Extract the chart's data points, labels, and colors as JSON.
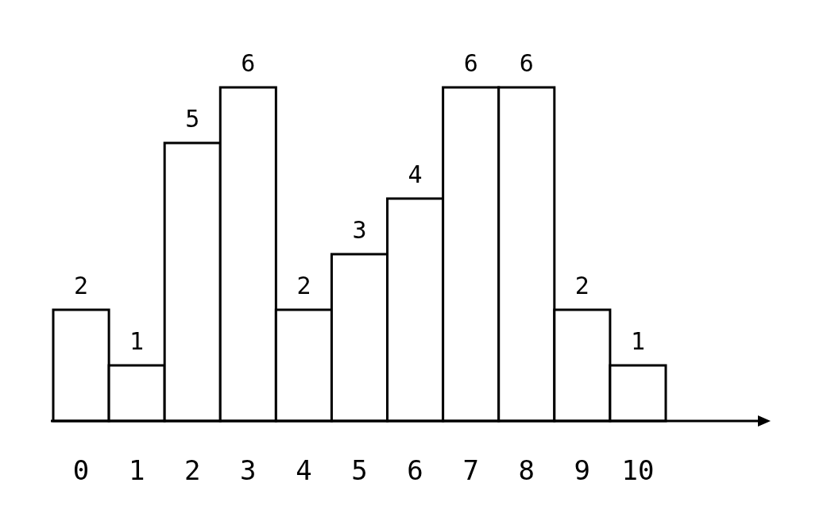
{
  "chart_data": {
    "type": "bar",
    "categories": [
      "0",
      "1",
      "2",
      "3",
      "4",
      "5",
      "6",
      "7",
      "8",
      "9",
      "10"
    ],
    "values": [
      2,
      1,
      5,
      6,
      2,
      3,
      4,
      6,
      6,
      2,
      1
    ],
    "color": "#ffffff",
    "data_labels": true
  }
}
